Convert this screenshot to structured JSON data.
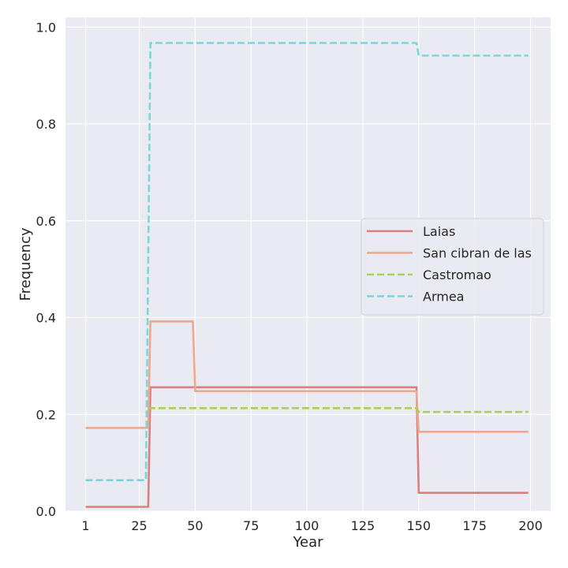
{
  "chart_data": {
    "type": "line",
    "xlabel": "Year",
    "ylabel": "Frequency",
    "xlim": [
      -8,
      209
    ],
    "ylim": [
      0,
      1.02
    ],
    "x_ticks": [
      1,
      25,
      50,
      75,
      100,
      125,
      150,
      175,
      200
    ],
    "y_ticks": [
      0.0,
      0.2,
      0.4,
      0.6,
      0.8,
      1.0
    ],
    "y_tick_labels": [
      "0.0",
      "0.2",
      "0.4",
      "0.6",
      "0.8",
      "1.0"
    ],
    "grid": true,
    "legend_position": "center-right",
    "series": [
      {
        "name": "Laias",
        "color": "#d88080",
        "dash": "solid",
        "x": [
          1,
          29,
          30,
          149,
          150,
          199
        ],
        "y": [
          0.009,
          0.009,
          0.256,
          0.256,
          0.038,
          0.038
        ]
      },
      {
        "name": "San cibran de las",
        "color": "#eea890",
        "dash": "solid",
        "x": [
          1,
          29,
          30,
          49,
          50,
          149,
          150,
          199
        ],
        "y": [
          0.172,
          0.172,
          0.392,
          0.392,
          0.248,
          0.248,
          0.164,
          0.164
        ]
      },
      {
        "name": "Castromao",
        "color": "#a8d060",
        "dash": "dashed",
        "x": [
          29,
          30,
          149,
          150,
          199
        ],
        "y": [
          0.213,
          0.213,
          0.213,
          0.205,
          0.205
        ]
      },
      {
        "name": "Armea",
        "color": "#78d8d8",
        "dash": "dashed",
        "x": [
          1,
          28,
          30,
          149,
          150,
          199
        ],
        "y": [
          0.064,
          0.064,
          0.967,
          0.967,
          0.941,
          0.941
        ]
      }
    ]
  }
}
